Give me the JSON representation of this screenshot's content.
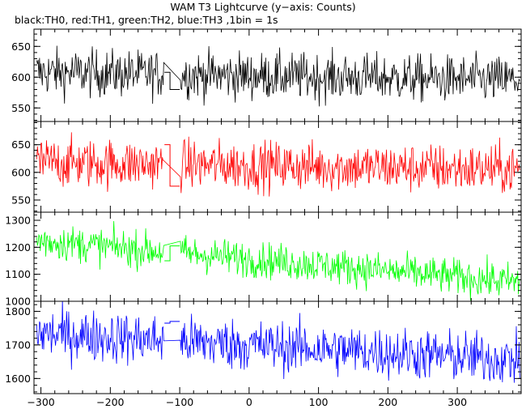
{
  "header": {
    "title": "WAM T3 Lightcurve (y−axis: Counts)",
    "subtitle": "black:TH0, red:TH1, green:TH2, blue:TH3 ,1bin = 1s"
  },
  "chart_data": [
    {
      "type": "line",
      "series": [
        {
          "name": "TH0",
          "color": "#000000"
        }
      ],
      "xlim": [
        -310,
        392
      ],
      "ylim": [
        528,
        678
      ],
      "y_ticks": [
        550,
        600,
        650
      ],
      "y_tick_labels": [
        "550",
        "600",
        "650"
      ],
      "gap": {
        "x_start": -122,
        "x_end": -100,
        "levels": [
          608,
          580
        ]
      },
      "trend": {
        "start": 608,
        "end": 595
      },
      "noise_amplitude": 19
    },
    {
      "type": "line",
      "series": [
        {
          "name": "TH1",
          "color": "#ff0000"
        }
      ],
      "xlim": [
        -310,
        392
      ],
      "ylim": [
        528,
        692
      ],
      "y_ticks": [
        550,
        600,
        650
      ],
      "y_tick_labels": [
        "550",
        "600",
        "650"
      ],
      "gap": {
        "x_start": -122,
        "x_end": -100,
        "levels": [
          650,
          575
        ]
      },
      "trend": {
        "start": 618,
        "end": 605
      },
      "noise_amplitude": 22
    },
    {
      "type": "line",
      "series": [
        {
          "name": "TH2",
          "color": "#00ff00"
        }
      ],
      "xlim": [
        -310,
        392
      ],
      "ylim": [
        1000,
        1330
      ],
      "y_ticks": [
        1000,
        1100,
        1200,
        1300
      ],
      "y_tick_labels": [
        "1000",
        "1100",
        "1200",
        "1300"
      ],
      "gap": {
        "x_start": -122,
        "x_end": -100,
        "levels": [
          1150,
          1205
        ]
      },
      "trend": {
        "start": 1225,
        "end": 1070
      },
      "noise_amplitude": 33
    },
    {
      "type": "line",
      "series": [
        {
          "name": "TH3",
          "color": "#0000ff"
        }
      ],
      "xlim": [
        -310,
        392
      ],
      "ylim": [
        1555,
        1830
      ],
      "y_ticks": [
        1600,
        1700,
        1800
      ],
      "y_tick_labels": [
        "1600",
        "1700",
        "1800"
      ],
      "gap": {
        "x_start": -122,
        "x_end": -100,
        "levels": [
          1765,
          1770
        ]
      },
      "trend": {
        "start": 1735,
        "end": 1655
      },
      "noise_amplitude": 38
    }
  ],
  "x_axis": {
    "ticks": [
      -300,
      -200,
      -100,
      0,
      100,
      200,
      300
    ],
    "tick_labels": [
      "−300",
      "−200",
      "−100",
      "0",
      "100",
      "200",
      "300"
    ],
    "minor_step": 20
  }
}
